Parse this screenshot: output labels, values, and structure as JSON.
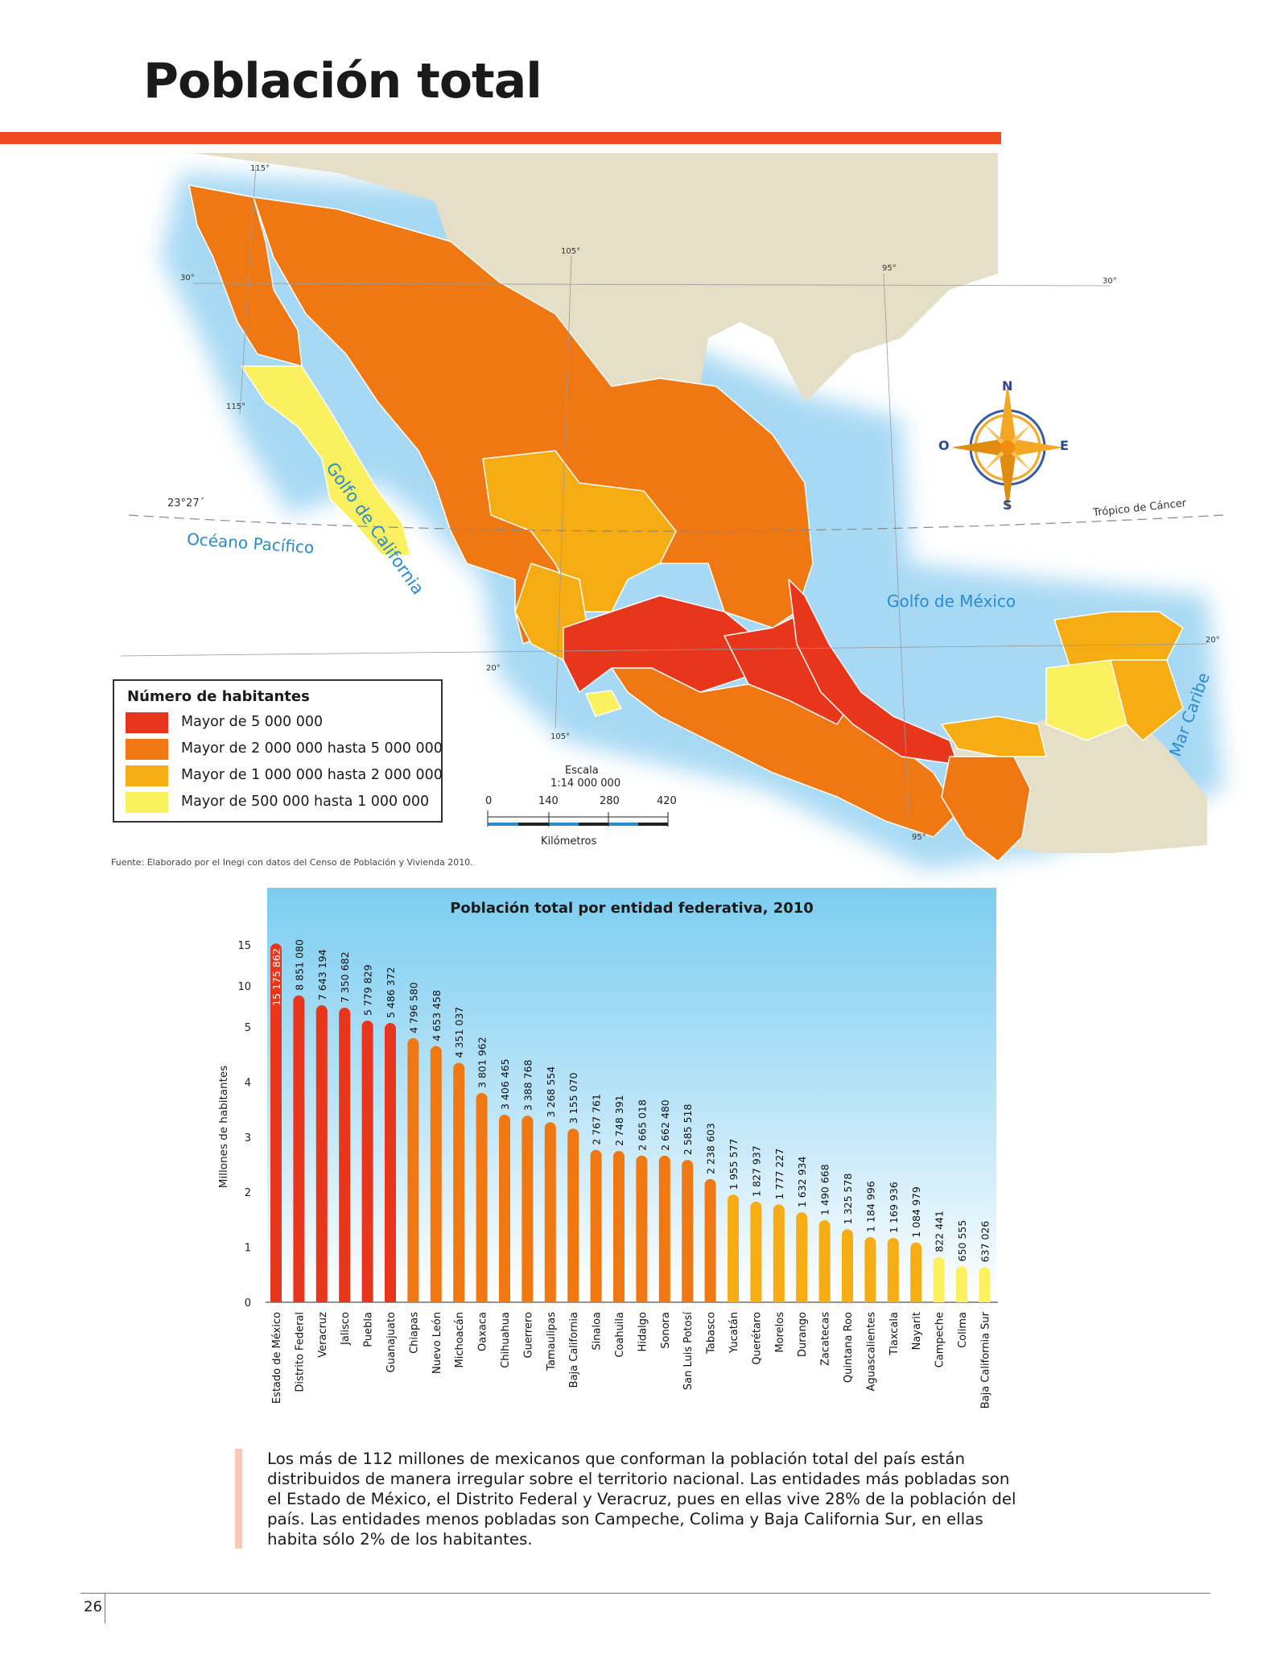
{
  "page": {
    "title": "Población total",
    "page_number": "26",
    "caption": "Los más de 112 millones de mexicanos que conforman la población total del país están distribuidos de manera irregular sobre el territorio nacional. Las entidades más pobladas son el Estado de México, el Distrito Federal y Veracruz, pues en ellas vive 28% de la población del país. Las entidades menos pobladas son Campeche, Colima y Baja California Sur, en ellas habita sólo 2% de los habitantes."
  },
  "colors": {
    "accent_bar": "#f04a23",
    "tier_1": "#e8361c",
    "tier_2": "#f07813",
    "tier_3": "#f6ad14",
    "tier_4": "#fbf060",
    "chart_bg_top": "#82d0f1",
    "chart_bg_bottom": "#ffffff",
    "water": "#bfe3f6",
    "land": "#e3dcc4"
  },
  "map": {
    "legend_title": "Número de habitantes",
    "legend_items": [
      {
        "label": "Mayor de 5 000 000",
        "color": "#e8361c"
      },
      {
        "label": "Mayor de 2 000 000 hasta 5 000 000",
        "color": "#f07813"
      },
      {
        "label": "Mayor de 1 000 000 hasta 2 000 000",
        "color": "#f6ad14"
      },
      {
        "label": "Mayor de 500 000 hasta 1 000 000",
        "color": "#fbf060"
      }
    ],
    "water_labels": {
      "golfo_california": "Golfo de California",
      "oceano_pacifico": "Océano Pacífico",
      "golfo_mexico": "Golfo de México",
      "mar_caribe": "Mar Caribe",
      "tropico": "Trópico de Cáncer"
    },
    "coordinates": {
      "lon_115": "115°",
      "lon_105": "105°",
      "lon_95": "95°",
      "lat_30": "30°",
      "lat_20": "20°",
      "lat_2327": "23°27´"
    },
    "compass": {
      "north": "N",
      "south": "S",
      "east": "E",
      "west": "O"
    },
    "scale": {
      "title": "Escala",
      "ratio": "1:14 000 000",
      "ticks": [
        "0",
        "140",
        "280",
        "420"
      ],
      "unit": "Kilómetros"
    },
    "source": "Fuente: Elaborado por el Inegi con datos del Censo de Población y Vivienda 2010."
  },
  "chart_data": {
    "type": "bar",
    "title": "Población total por entidad federativa, 2010",
    "ylabel": "Millones de habitantes",
    "y_ticks": [
      "0",
      "1",
      "2",
      "3",
      "4",
      "5",
      "10",
      "15"
    ],
    "y_scale": "piecewise: 0–5 linear, 5–15 compressed",
    "categories": [
      "Estado de México",
      "Distrito Federal",
      "Veracruz",
      "Jalisco",
      "Puebla",
      "Guanajuato",
      "Chiapas",
      "Nuevo León",
      "Michoacán",
      "Oaxaca",
      "Chihuahua",
      "Guerrero",
      "Tamaulipas",
      "Baja California",
      "Sinaloa",
      "Coahuila",
      "Hidalgo",
      "Sonora",
      "San Luis Potosí",
      "Tabasco",
      "Yucatán",
      "Querétaro",
      "Morelos",
      "Durango",
      "Zacatecas",
      "Quintana Roo",
      "Aguascalientes",
      "Tlaxcala",
      "Nayarit",
      "Campeche",
      "Colima",
      "Baja California Sur"
    ],
    "values": [
      15175862,
      8851080,
      7643194,
      7350682,
      5779829,
      5486372,
      4796580,
      4653458,
      4351037,
      3801962,
      3406465,
      3388768,
      3268554,
      3155070,
      2767761,
      2748391,
      2665018,
      2662480,
      2585518,
      2238603,
      1955577,
      1827937,
      1777227,
      1632934,
      1490668,
      1325578,
      1184996,
      1169936,
      1084979,
      822441,
      650555,
      637026
    ],
    "value_labels": [
      "15 175 862",
      "8 851 080",
      "7 643 194",
      "7 350 682",
      "5 779 829",
      "5 486 372",
      "4 796 580",
      "4 653 458",
      "4 351 037",
      "3 801 962",
      "3 406 465",
      "3 388 768",
      "3 268 554",
      "3 155 070",
      "2 767 761",
      "2 748 391",
      "2 665 018",
      "2 662 480",
      "2 585 518",
      "2 238 603",
      "1 955 577",
      "1 827 937",
      "1 777 227",
      "1 632 934",
      "1 490 668",
      "1 325 578",
      "1 184 996",
      "1 169 936",
      "1 084 979",
      "822 441",
      "650 555",
      "637 026"
    ],
    "grid": false,
    "legend": "none"
  }
}
